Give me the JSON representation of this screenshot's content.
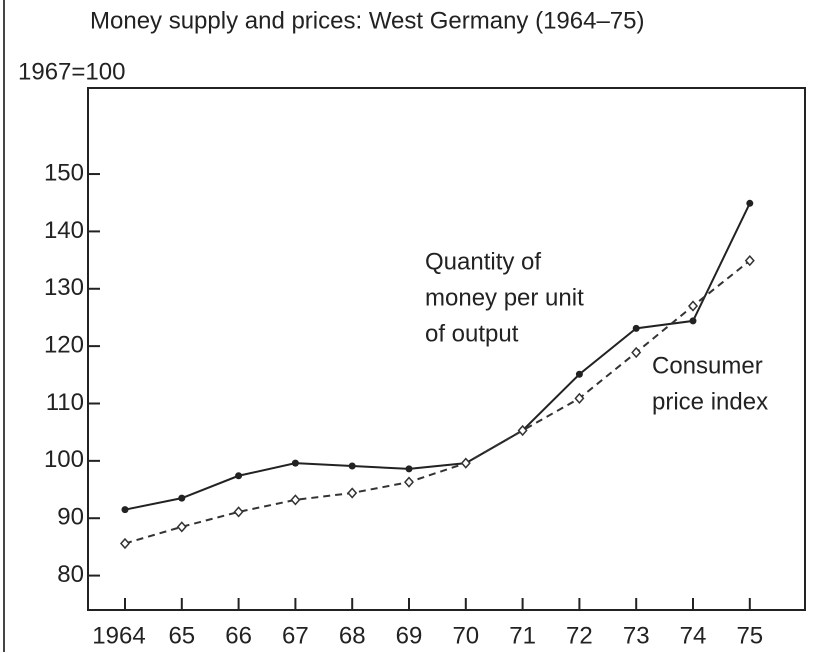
{
  "chart_data": {
    "type": "line",
    "title": "Money supply and prices: West Germany (1964–75)",
    "y_axis_label": "1967=100",
    "categories": [
      "1964",
      "65",
      "66",
      "67",
      "68",
      "69",
      "70",
      "71",
      "72",
      "73",
      "74",
      "75"
    ],
    "series": [
      {
        "name": "Quantity of money per unit of output",
        "color": "#222222",
        "dashed": false,
        "marker": "filled",
        "values": [
          91.5,
          93.5,
          97.4,
          99.6,
          99.1,
          98.6,
          99.6,
          105.3,
          115.1,
          123.1,
          124.4,
          144.9
        ]
      },
      {
        "name": "Consumer price index",
        "color": "#333333",
        "dashed": true,
        "marker": "open",
        "values": [
          85.6,
          88.5,
          91.1,
          93.2,
          94.4,
          96.3,
          99.6,
          105.3,
          110.9,
          118.9,
          127.0,
          134.9
        ]
      }
    ],
    "annotations": [
      {
        "lines": [
          "Quantity of",
          "money per unit",
          "of output"
        ]
      },
      {
        "lines": [
          "Consumer",
          "price index"
        ]
      }
    ],
    "ylim": [
      74,
      165
    ],
    "yticks": [
      80,
      90,
      100,
      110,
      120,
      130,
      140,
      150
    ],
    "grid": false
  }
}
